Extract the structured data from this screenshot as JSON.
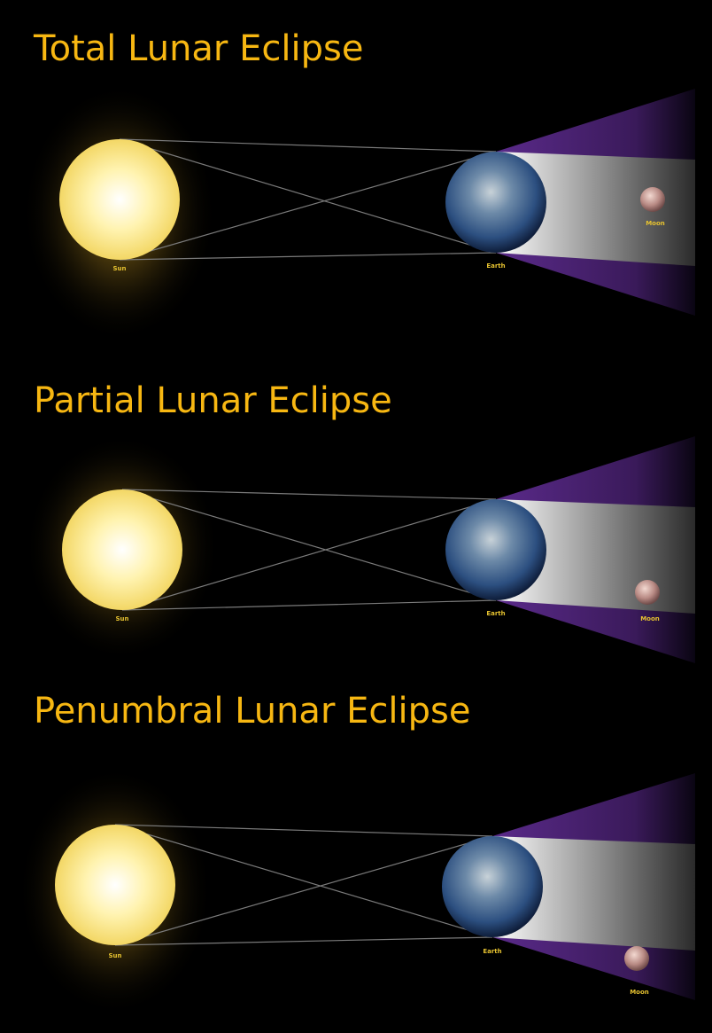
{
  "panels": [
    {
      "title": "Total Lunar Eclipse",
      "sun_label": "Sun",
      "earth_label": "Earth",
      "moon_label": "Moon"
    },
    {
      "title": "Partial Lunar Eclipse",
      "sun_label": "Sun",
      "earth_label": "Earth",
      "moon_label": "Moon"
    },
    {
      "title": "Penumbral Lunar Eclipse",
      "sun_label": "Sun",
      "earth_label": "Earth",
      "moon_label": "Moon"
    }
  ]
}
